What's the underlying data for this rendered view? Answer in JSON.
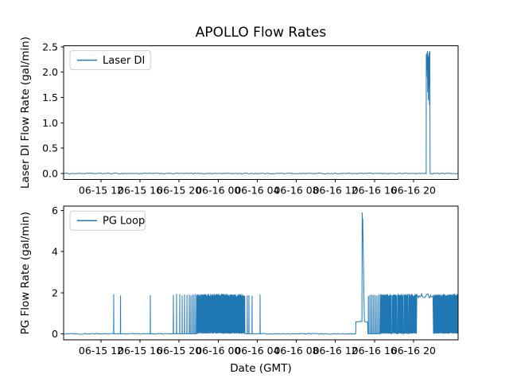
{
  "figure": {
    "background": "#ffffff",
    "text_color": "#000000",
    "accent_color": "#1f77b4",
    "legend_border_color": "#cccccc"
  },
  "chart_data": [
    {
      "name": "laser-di",
      "type": "line",
      "title": "APOLLO Flow Rates",
      "ylabel": "Laser DI Flow Rate (gal/min)",
      "legend": "Laser DI",
      "legend_loc": "upper left",
      "line_color": "#1f77b4",
      "grid": false,
      "time_unit": "hours since 06-15 00:00 GMT",
      "xlim": [
        8.17,
        48.57
      ],
      "ylim": [
        -0.12,
        2.52
      ],
      "yticks": [
        0.0,
        0.5,
        1.0,
        1.5,
        2.0,
        2.5
      ],
      "ytick_labels": [
        "0.0",
        "0.5",
        "1.0",
        "1.5",
        "2.0",
        "2.5"
      ],
      "xticks": [
        12,
        16,
        20,
        24,
        28,
        32,
        36,
        40,
        44
      ],
      "xtick_labels": [
        "06-15 12",
        "06-15 16",
        "06-15 20",
        "06-16 00",
        "06-16 04",
        "06-16 08",
        "06-16 12",
        "06-16 16",
        "06-16 20"
      ],
      "observed_max": 2.4,
      "segments": [
        {
          "kind": "flat",
          "t": [
            8.17,
            45.28
          ],
          "v": 0,
          "jitter": 0.008
        },
        {
          "kind": "points",
          "pts": [
            [
              45.3,
              0
            ],
            [
              45.31,
              2.35
            ],
            [
              45.34,
              1.9
            ],
            [
              45.37,
              2.38
            ],
            [
              45.4,
              2.05
            ],
            [
              45.43,
              2.42
            ],
            [
              45.46,
              1.6
            ],
            [
              45.49,
              2.3
            ],
            [
              45.52,
              1.45
            ],
            [
              45.55,
              2.35
            ],
            [
              45.58,
              1.7
            ],
            [
              45.61,
              2.4
            ],
            [
              45.64,
              1.35
            ],
            [
              45.67,
              2.42
            ],
            [
              45.7,
              0
            ]
          ]
        },
        {
          "kind": "flat",
          "t": [
            45.72,
            48.57
          ],
          "v": 0,
          "jitter": 0.008
        }
      ]
    },
    {
      "name": "pg-loop",
      "type": "line",
      "xlabel": "Date (GMT)",
      "ylabel": "PG Flow Rate (gal/min)",
      "legend": "PG Loop",
      "legend_loc": "upper left",
      "line_color": "#1f77b4",
      "grid": false,
      "time_unit": "hours since 06-15 00:00 GMT",
      "xlim": [
        8.17,
        48.57
      ],
      "ylim": [
        -0.3,
        6.2
      ],
      "yticks": [
        0,
        2,
        4,
        6
      ],
      "ytick_labels": [
        "0",
        "2",
        "4",
        "6"
      ],
      "xticks": [
        12,
        16,
        20,
        24,
        28,
        32,
        36,
        40,
        44
      ],
      "xtick_labels": [
        "06-15 12",
        "06-15 16",
        "06-15 20",
        "06-16 00",
        "06-16 04",
        "06-16 08",
        "06-16 12",
        "06-16 16",
        "06-16 20"
      ],
      "observed_max": 5.9,
      "segments": [
        {
          "kind": "flat",
          "t": [
            8.17,
            13.27
          ],
          "v": 0,
          "jitter": 0.02
        },
        {
          "kind": "spikes",
          "times": [
            13.3,
            14.0
          ],
          "height": 1.88
        },
        {
          "kind": "flat",
          "t": [
            14.05,
            17.0
          ],
          "v": 0,
          "jitter": 0.02
        },
        {
          "kind": "spikes",
          "times": [
            17.05
          ],
          "height": 1.88
        },
        {
          "kind": "flat",
          "t": [
            17.1,
            19.35
          ],
          "v": 0,
          "jitter": 0.02
        },
        {
          "kind": "spikes",
          "times": [
            19.41,
            19.74,
            20.06,
            20.31,
            20.55,
            20.8,
            21.04,
            21.2,
            21.37,
            21.53,
            21.69
          ],
          "height": 1.9
        },
        {
          "kind": "burst",
          "t": [
            21.78,
            26.74
          ],
          "low": 0,
          "high": 1.88
        },
        {
          "kind": "spikes",
          "times": [
            26.98,
            27.15,
            27.47,
            28.29
          ],
          "height": 1.88
        },
        {
          "kind": "flat",
          "t": [
            28.38,
            38.06
          ],
          "v": 0,
          "jitter": 0.02
        },
        {
          "kind": "points",
          "pts": [
            [
              38.08,
              0
            ],
            [
              38.1,
              0.58
            ],
            [
              38.72,
              0.6
            ],
            [
              38.75,
              5.9
            ],
            [
              38.78,
              5.3
            ],
            [
              38.8,
              5.6
            ],
            [
              38.83,
              4.7
            ],
            [
              38.86,
              3.9
            ],
            [
              38.89,
              3.0
            ],
            [
              38.92,
              2.1
            ],
            [
              38.95,
              1.2
            ],
            [
              38.98,
              0.6
            ],
            [
              39.3,
              0.56
            ],
            [
              39.33,
              0
            ]
          ]
        },
        {
          "kind": "spikes",
          "times": [
            39.38,
            39.54,
            39.7,
            39.86,
            40.02,
            40.18,
            40.35,
            40.51
          ],
          "height": 1.88
        },
        {
          "kind": "burst",
          "t": [
            40.6,
            41.73
          ],
          "low": 0,
          "high": 1.88
        },
        {
          "kind": "flat",
          "t": [
            41.73,
            41.8
          ],
          "v": 0
        },
        {
          "kind": "burst",
          "t": [
            41.8,
            42.3
          ],
          "low": 0,
          "high": 1.88
        },
        {
          "kind": "flat",
          "t": [
            42.3,
            42.37
          ],
          "v": 0
        },
        {
          "kind": "burst",
          "t": [
            42.37,
            42.95
          ],
          "low": 0,
          "high": 1.88
        },
        {
          "kind": "flat",
          "t": [
            42.95,
            43.02
          ],
          "v": 0
        },
        {
          "kind": "burst",
          "t": [
            43.02,
            43.44
          ],
          "low": 0,
          "high": 1.88
        },
        {
          "kind": "flat",
          "t": [
            43.44,
            43.5
          ],
          "v": 0
        },
        {
          "kind": "burst",
          "t": [
            43.5,
            44.3
          ],
          "low": 0,
          "high": 1.88
        },
        {
          "kind": "plateau",
          "t": [
            44.34,
            46.0
          ],
          "v": 1.85,
          "jitter": 0.1
        },
        {
          "kind": "burst",
          "t": [
            46.05,
            48.57
          ],
          "low": 0,
          "high": 1.88
        }
      ]
    }
  ]
}
